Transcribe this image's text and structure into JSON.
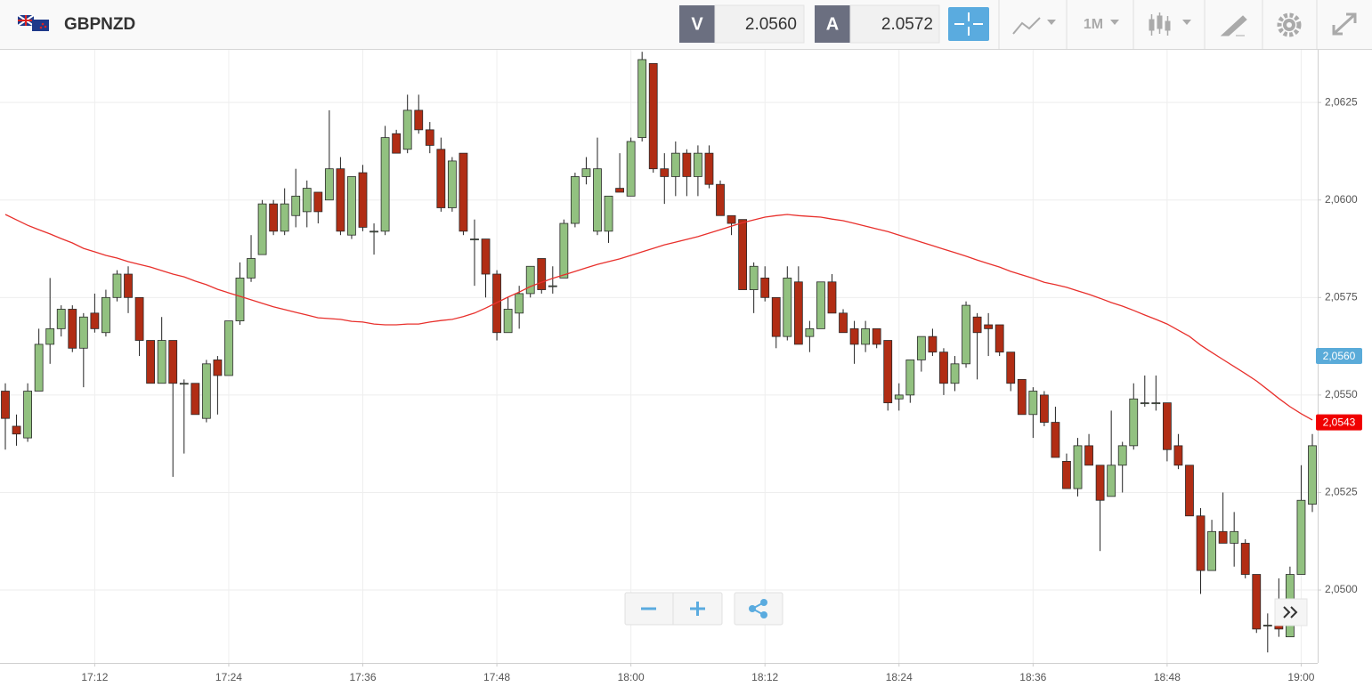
{
  "chart_data": {
    "type": "candlestick",
    "title": "GBPNZD",
    "toolbar": {
      "bid_label": "V",
      "bid": "2.0560",
      "ask_label": "A",
      "ask": "2.0572",
      "timeframe": "1M"
    },
    "categories": [
      "17:04",
      "17:05",
      "17:06",
      "17:07",
      "17:08",
      "17:09",
      "17:10",
      "17:11",
      "17:12",
      "17:13",
      "17:14",
      "17:15",
      "17:16",
      "17:17",
      "17:18",
      "17:19",
      "17:20",
      "17:21",
      "17:22",
      "17:23",
      "17:24",
      "17:25",
      "17:26",
      "17:27",
      "17:28",
      "17:29",
      "17:30",
      "17:31",
      "17:32",
      "17:33",
      "17:34",
      "17:35",
      "17:36",
      "17:37",
      "17:38",
      "17:39",
      "17:40",
      "17:41",
      "17:42",
      "17:43",
      "17:44",
      "17:45",
      "17:46",
      "17:47",
      "17:48",
      "17:49",
      "17:50",
      "17:51",
      "17:52",
      "17:53",
      "17:54",
      "17:55",
      "17:56",
      "17:57",
      "17:58",
      "17:59",
      "18:00",
      "18:01",
      "18:02",
      "18:03",
      "18:04",
      "18:05",
      "18:06",
      "18:07",
      "18:08",
      "18:09",
      "18:10",
      "18:11",
      "18:12",
      "18:13",
      "18:14",
      "18:15",
      "18:16",
      "18:17",
      "18:18",
      "18:19",
      "18:20",
      "18:21",
      "18:22",
      "18:23",
      "18:24",
      "18:25",
      "18:26",
      "18:27",
      "18:28",
      "18:29",
      "18:30",
      "18:31",
      "18:32",
      "18:33",
      "18:34",
      "18:35",
      "18:36",
      "18:37",
      "18:38",
      "18:39",
      "18:40",
      "18:41",
      "18:42",
      "18:43",
      "18:44",
      "18:45",
      "18:46",
      "18:47",
      "18:48",
      "18:49",
      "18:50",
      "18:51",
      "18:52",
      "18:53",
      "18:54",
      "18:55",
      "18:56",
      "18:57",
      "18:58",
      "18:59",
      "19:00",
      "19:01"
    ],
    "open": [
      2.0551,
      2.0542,
      2.0539,
      2.0551,
      2.0563,
      2.0567,
      2.0572,
      2.0562,
      2.0571,
      2.0566,
      2.0575,
      2.0581,
      2.0575,
      2.0564,
      2.0553,
      2.0564,
      2.0553,
      2.0553,
      2.0544,
      2.0559,
      2.0555,
      2.0569,
      2.058,
      2.0586,
      2.0599,
      2.0592,
      2.0596,
      2.0597,
      2.0602,
      2.06,
      2.0608,
      2.0591,
      2.0607,
      2.0592,
      2.0592,
      2.0617,
      2.0613,
      2.0623,
      2.0618,
      2.0613,
      2.0598,
      2.0612,
      2.059,
      2.059,
      2.0581,
      2.0566,
      2.0571,
      2.0576,
      2.0585,
      2.0578,
      2.058,
      2.0594,
      2.0606,
      2.0592,
      2.0592,
      2.0603,
      2.0601,
      2.0616,
      2.0635,
      2.0608,
      2.0606,
      2.0612,
      2.0606,
      2.0612,
      2.0604,
      2.0596,
      2.0595,
      2.0577,
      2.058,
      2.0575,
      2.0565,
      2.0579,
      2.0565,
      2.0567,
      2.0579,
      2.0571,
      2.0567,
      2.0563,
      2.0567,
      2.0564,
      2.0549,
      2.055,
      2.0559,
      2.0565,
      2.0561,
      2.0553,
      2.0558,
      2.057,
      2.0568,
      2.0568,
      2.0561,
      2.0554,
      2.0545,
      2.055,
      2.0543,
      2.0533,
      2.0526,
      2.0537,
      2.0532,
      2.0524,
      2.0532,
      2.0537,
      2.0548,
      2.0548,
      2.0548,
      2.0537,
      2.0532,
      2.0519,
      2.0505,
      2.0515,
      2.0512,
      2.0512,
      2.0504,
      2.0491,
      2.0491,
      2.0488,
      2.0504,
      2.0522
    ],
    "high": [
      2.0553,
      2.0545,
      2.0553,
      2.0567,
      2.058,
      2.0573,
      2.0573,
      2.0571,
      2.0576,
      2.0577,
      2.0582,
      2.0583,
      2.0575,
      2.0564,
      2.057,
      2.0564,
      2.0554,
      2.0553,
      2.0559,
      2.056,
      2.0569,
      2.0584,
      2.0591,
      2.06,
      2.06,
      2.0603,
      2.0608,
      2.0605,
      2.0602,
      2.0623,
      2.0611,
      2.0606,
      2.0609,
      2.0594,
      2.0619,
      2.0618,
      2.0627,
      2.0627,
      2.062,
      2.0616,
      2.0611,
      2.0612,
      2.0595,
      2.059,
      2.0582,
      2.0575,
      2.0578,
      2.0583,
      2.0585,
      2.0583,
      2.0595,
      2.0607,
      2.0611,
      2.0616,
      2.0601,
      2.0612,
      2.0616,
      2.0638,
      2.0635,
      2.0612,
      2.0615,
      2.0613,
      2.0614,
      2.0614,
      2.0605,
      2.0596,
      2.0595,
      2.0584,
      2.0583,
      2.0575,
      2.0583,
      2.0583,
      2.0569,
      2.0579,
      2.0581,
      2.0572,
      2.0569,
      2.0569,
      2.0567,
      2.0564,
      2.0553,
      2.0559,
      2.0565,
      2.0567,
      2.0562,
      2.056,
      2.0574,
      2.0571,
      2.0571,
      2.0568,
      2.0561,
      2.0554,
      2.0552,
      2.0551,
      2.0547,
      2.0535,
      2.0539,
      2.054,
      2.0532,
      2.0546,
      2.0538,
      2.0553,
      2.0555,
      2.0555,
      2.0548,
      2.054,
      2.0532,
      2.0521,
      2.0518,
      2.0525,
      2.052,
      2.0513,
      2.0504,
      2.0494,
      2.0503,
      2.0506,
      2.0532,
      2.054
    ],
    "low": [
      2.0536,
      2.0537,
      2.0538,
      2.0551,
      2.0558,
      2.0565,
      2.0561,
      2.0552,
      2.0566,
      2.0565,
      2.0574,
      2.0571,
      2.056,
      2.0553,
      2.0553,
      2.0529,
      2.0535,
      2.0545,
      2.0543,
      2.0545,
      2.0555,
      2.0568,
      2.0579,
      2.0586,
      2.0591,
      2.0591,
      2.0593,
      2.0593,
      2.0594,
      2.06,
      2.0591,
      2.059,
      2.0592,
      2.0586,
      2.0591,
      2.0612,
      2.0612,
      2.0617,
      2.0612,
      2.0597,
      2.0597,
      2.0591,
      2.0578,
      2.0575,
      2.0564,
      2.0566,
      2.0567,
      2.0575,
      2.0576,
      2.0576,
      2.058,
      2.0593,
      2.0604,
      2.0591,
      2.0589,
      2.0602,
      2.0601,
      2.0615,
      2.0607,
      2.0599,
      2.0601,
      2.0601,
      2.0601,
      2.0603,
      2.0596,
      2.0591,
      2.0577,
      2.0571,
      2.0574,
      2.0562,
      2.0564,
      2.0563,
      2.0561,
      2.0567,
      2.0571,
      2.0566,
      2.0558,
      2.0561,
      2.0562,
      2.0546,
      2.0546,
      2.0548,
      2.0556,
      2.056,
      2.055,
      2.0551,
      2.0557,
      2.0554,
      2.056,
      2.056,
      2.0551,
      2.0545,
      2.0539,
      2.0542,
      2.0534,
      2.0526,
      2.0524,
      2.0532,
      2.051,
      2.0524,
      2.0525,
      2.0536,
      2.0547,
      2.0546,
      2.0533,
      2.0531,
      2.0519,
      2.0499,
      2.0505,
      2.0512,
      2.0506,
      2.0503,
      2.0489,
      2.0484,
      2.0488,
      2.0488,
      2.0504,
      2.052
    ],
    "close": [
      2.0544,
      2.054,
      2.0551,
      2.0563,
      2.0567,
      2.0572,
      2.0562,
      2.057,
      2.0567,
      2.0575,
      2.0581,
      2.0575,
      2.0564,
      2.0553,
      2.0564,
      2.0553,
      2.0553,
      2.0545,
      2.0558,
      2.0555,
      2.0569,
      2.058,
      2.0585,
      2.0599,
      2.0592,
      2.0599,
      2.0601,
      2.0603,
      2.0597,
      2.0608,
      2.0592,
      2.0606,
      2.0593,
      2.0592,
      2.0616,
      2.0612,
      2.0623,
      2.0618,
      2.0614,
      2.0598,
      2.061,
      2.0592,
      2.059,
      2.0581,
      2.0566,
      2.0572,
      2.0576,
      2.0583,
      2.0577,
      2.0578,
      2.0594,
      2.0606,
      2.0608,
      2.0608,
      2.0601,
      2.0602,
      2.0615,
      2.0636,
      2.0608,
      2.0606,
      2.0612,
      2.0606,
      2.0612,
      2.0604,
      2.0596,
      2.0594,
      2.0577,
      2.0583,
      2.0575,
      2.0565,
      2.058,
      2.0563,
      2.0567,
      2.0579,
      2.0571,
      2.0566,
      2.0563,
      2.0567,
      2.0563,
      2.0548,
      2.055,
      2.0559,
      2.0565,
      2.0561,
      2.0553,
      2.0558,
      2.0573,
      2.0566,
      2.0567,
      2.0561,
      2.0553,
      2.0545,
      2.0551,
      2.0543,
      2.0534,
      2.0526,
      2.0537,
      2.0532,
      2.0523,
      2.0532,
      2.0537,
      2.0549,
      2.0548,
      2.0548,
      2.0536,
      2.0532,
      2.0519,
      2.0505,
      2.0515,
      2.0512,
      2.0515,
      2.0504,
      2.049,
      2.0491,
      2.049,
      2.0504,
      2.0523,
      2.0537
    ],
    "up_color": "#92c180",
    "down_color": "#b12d14",
    "moving_average": {
      "color": "#e8302c",
      "values": [
        2.05963,
        2.05949,
        2.05935,
        2.05924,
        2.05913,
        2.05901,
        2.0589,
        2.05876,
        2.05867,
        2.05858,
        2.05851,
        2.05842,
        2.05835,
        2.05828,
        2.05819,
        2.0581,
        2.05803,
        2.05792,
        2.05783,
        2.05771,
        2.05762,
        2.05753,
        2.05744,
        2.05735,
        2.05726,
        2.05719,
        2.05712,
        2.05705,
        2.05698,
        2.05696,
        2.05694,
        2.05689,
        2.05687,
        2.05682,
        2.0568,
        2.0568,
        2.05682,
        2.05682,
        2.05687,
        2.05691,
        2.05694,
        2.05701,
        2.0571,
        2.05723,
        2.05737,
        2.05751,
        2.05764,
        2.05778,
        2.05789,
        2.05799,
        2.05808,
        2.05817,
        2.05826,
        2.05835,
        2.05842,
        2.05849,
        2.05858,
        2.05867,
        2.05876,
        2.05885,
        2.05892,
        2.05899,
        2.05906,
        2.05915,
        2.05924,
        2.05933,
        2.05942,
        2.05949,
        2.05956,
        2.0596,
        2.05963,
        2.0596,
        2.05958,
        2.05956,
        2.05951,
        2.05947,
        2.0594,
        2.05933,
        2.05926,
        2.05919,
        2.0591,
        2.05901,
        2.05892,
        2.05883,
        2.05874,
        2.05865,
        2.05856,
        2.05846,
        2.05837,
        2.05828,
        2.05817,
        2.05808,
        2.05799,
        2.05789,
        2.05783,
        2.05776,
        2.05767,
        2.05758,
        2.05748,
        2.05737,
        2.05728,
        2.05717,
        2.05705,
        2.05694,
        2.05682,
        2.05666,
        2.0565,
        2.05628,
        2.05609,
        2.05591,
        2.05573,
        2.05555,
        2.05536,
        2.05514,
        2.05491,
        2.0547,
        2.05452,
        2.05436
      ]
    },
    "price_markers": [
      {
        "value": 2.056,
        "label": "2,0560",
        "color": "#5aabd9"
      },
      {
        "value": 2.0543,
        "label": "2,0543",
        "color": "#f00000"
      }
    ],
    "ylim": [
      2.04813,
      2.06385
    ],
    "yticks": [
      {
        "value": 2.05,
        "label": "2,0500"
      },
      {
        "value": 2.0525,
        "label": "2,0525"
      },
      {
        "value": 2.055,
        "label": "2,0550"
      },
      {
        "value": 2.0575,
        "label": "2,0575"
      },
      {
        "value": 2.06,
        "label": "2,0600"
      },
      {
        "value": 2.0625,
        "label": "2,0625"
      }
    ],
    "xticks": [
      "17:12",
      "17:24",
      "17:36",
      "17:48",
      "18:00",
      "18:12",
      "18:24",
      "18:36",
      "18:48",
      "19:00"
    ],
    "grid": true
  }
}
